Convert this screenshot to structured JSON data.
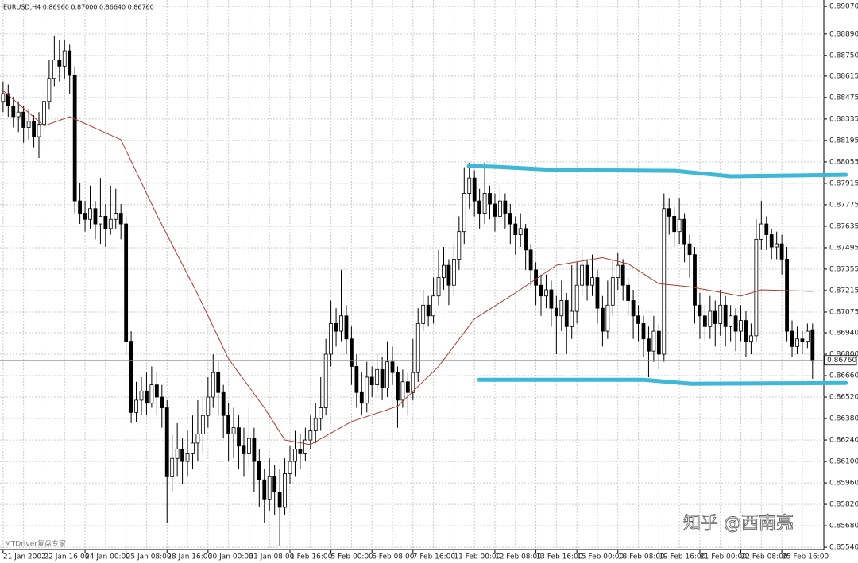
{
  "chart_data": {
    "type": "candlestick",
    "header": "EURUSD,H4 0.86960 0.87000 0.86640 0.86760",
    "categories": [
      "21 Jan 2002",
      null,
      null,
      null,
      null,
      null,
      null,
      null,
      "22 Jan 16:00",
      null,
      null,
      null,
      null,
      null,
      null,
      null,
      "24 Jan 00:00",
      null,
      null,
      null,
      null,
      null,
      null,
      null,
      "25 Jan 08:00",
      null,
      null,
      null,
      null,
      null,
      null,
      null,
      "28 Jan 16:00",
      null,
      null,
      null,
      null,
      null,
      null,
      null,
      "30 Jan 00:00",
      null,
      null,
      null,
      null,
      null,
      null,
      null,
      "31 Jan 08:00",
      null,
      null,
      null,
      null,
      null,
      null,
      null,
      "1 Feb 16:00",
      null,
      null,
      null,
      null,
      null,
      null,
      null,
      "5 Feb 00:00",
      null,
      null,
      null,
      null,
      null,
      null,
      null,
      "6 Feb 08:00",
      null,
      null,
      null,
      null,
      null,
      null,
      null,
      "7 Feb 16:00",
      null,
      null,
      null,
      null,
      null,
      null,
      null,
      "11 Feb 00:00",
      null,
      null,
      null,
      null,
      null,
      null,
      null,
      "12 Feb 08:00",
      null,
      null,
      null,
      null,
      null,
      null,
      null,
      "13 Feb 16:00",
      null,
      null,
      null,
      null,
      null,
      null,
      null,
      "15 Feb 00:00",
      null,
      null,
      null,
      null,
      null,
      null,
      null,
      "18 Feb 08:00",
      null,
      null,
      null,
      null,
      null,
      null,
      null,
      "19 Feb 16:00",
      null,
      null,
      null,
      null,
      null,
      null,
      null,
      "21 Feb 00:00",
      null,
      null,
      null,
      null,
      null,
      null,
      null,
      "22 Feb 08:00",
      null,
      null,
      null,
      null,
      null,
      null,
      null,
      "25 Feb 16:00",
      null,
      null,
      null,
      null,
      null,
      null
    ],
    "open": [
      0.8845,
      0.885,
      0.8842,
      0.8835,
      0.8838,
      0.8828,
      0.8832,
      0.8822,
      0.883,
      0.8845,
      0.886,
      0.8872,
      0.8868,
      0.8878,
      0.8862,
      0.878,
      0.8772,
      0.8768,
      0.8775,
      0.8765,
      0.877,
      0.8762,
      0.8768,
      0.8772,
      0.8765,
      0.8688,
      0.8642,
      0.865,
      0.8656,
      0.8648,
      0.866,
      0.8652,
      0.8645,
      0.86,
      0.8612,
      0.8618,
      0.861,
      0.8615,
      0.8622,
      0.8628,
      0.864,
      0.8652,
      0.8668,
      0.8655,
      0.864,
      0.8628,
      0.8632,
      0.862,
      0.8615,
      0.8625,
      0.861,
      0.8598,
      0.8585,
      0.86,
      0.859,
      0.858,
      0.8602,
      0.861,
      0.8618,
      0.8615,
      0.8624,
      0.863,
      0.8638,
      0.8645,
      0.868,
      0.87,
      0.8695,
      0.8705,
      0.869,
      0.8672,
      0.8655,
      0.8648,
      0.8665,
      0.866,
      0.867,
      0.8658,
      0.8675,
      0.8668,
      0.865,
      0.8662,
      0.8655,
      0.8668,
      0.87,
      0.8712,
      0.8705,
      0.8718,
      0.873,
      0.8738,
      0.8725,
      0.8742,
      0.876,
      0.8785,
      0.8795,
      0.878,
      0.8772,
      0.8785,
      0.8778,
      0.877,
      0.878,
      0.8772,
      0.8765,
      0.8758,
      0.8762,
      0.8748,
      0.8735,
      0.8725,
      0.8718,
      0.8722,
      0.871,
      0.8705,
      0.8715,
      0.8698,
      0.8708,
      0.8725,
      0.8738,
      0.8725,
      0.873,
      0.871,
      0.8695,
      0.8712,
      0.873,
      0.8738,
      0.8725,
      0.8715,
      0.8705,
      0.87,
      0.869,
      0.8682,
      0.8695,
      0.868,
      0.8775,
      0.877,
      0.876,
      0.8768,
      0.8752,
      0.8745,
      0.8712,
      0.8705,
      0.8698,
      0.8708,
      0.87,
      0.8712,
      0.8698,
      0.8705,
      0.8695,
      0.8702,
      0.8688,
      0.8692,
      0.8755,
      0.8765,
      0.8758,
      0.875,
      0.8752,
      0.8742,
      0.8695,
      0.8685,
      0.869,
      0.8688,
      0.8696
    ],
    "high": [
      0.8858,
      0.8856,
      0.8848,
      0.8845,
      0.8842,
      0.884,
      0.8836,
      0.8838,
      0.8852,
      0.8872,
      0.8888,
      0.8885,
      0.8885,
      0.8882,
      0.8868,
      0.8792,
      0.878,
      0.879,
      0.878,
      0.8795,
      0.8778,
      0.879,
      0.8788,
      0.8778,
      0.877,
      0.8695,
      0.8662,
      0.8665,
      0.8668,
      0.8672,
      0.8668,
      0.866,
      0.865,
      0.8628,
      0.8635,
      0.8625,
      0.863,
      0.864,
      0.865,
      0.8652,
      0.8665,
      0.868,
      0.8675,
      0.866,
      0.8648,
      0.8645,
      0.864,
      0.8632,
      0.8645,
      0.8632,
      0.8618,
      0.8605,
      0.8612,
      0.8608,
      0.8605,
      0.8612,
      0.862,
      0.863,
      0.8628,
      0.8632,
      0.864,
      0.8648,
      0.8665,
      0.869,
      0.8715,
      0.871,
      0.8735,
      0.8712,
      0.8698,
      0.868,
      0.8668,
      0.8675,
      0.8672,
      0.868,
      0.8678,
      0.8688,
      0.8685,
      0.8672,
      0.867,
      0.8668,
      0.869,
      0.871,
      0.8722,
      0.8718,
      0.873,
      0.8748,
      0.875,
      0.8742,
      0.8752,
      0.877,
      0.8802,
      0.8805,
      0.88,
      0.8788,
      0.8805,
      0.879,
      0.8785,
      0.879,
      0.8785,
      0.8778,
      0.877,
      0.8772,
      0.8765,
      0.8752,
      0.874,
      0.8732,
      0.8732,
      0.8728,
      0.8718,
      0.8728,
      0.872,
      0.8738,
      0.874,
      0.8748,
      0.8742,
      0.8745,
      0.8735,
      0.8718,
      0.8728,
      0.8742,
      0.8746,
      0.8742,
      0.873,
      0.8722,
      0.8712,
      0.8705,
      0.8698,
      0.8705,
      0.87,
      0.8785,
      0.8782,
      0.8776,
      0.8782,
      0.8772,
      0.8758,
      0.875,
      0.872,
      0.8712,
      0.8718,
      0.8715,
      0.8722,
      0.8718,
      0.8712,
      0.871,
      0.8712,
      0.8708,
      0.87,
      0.8768,
      0.878,
      0.877,
      0.8762,
      0.876,
      0.8758,
      0.875,
      0.8702,
      0.8698,
      0.8695,
      0.87,
      0.87
    ],
    "low": [
      0.8838,
      0.8835,
      0.8828,
      0.8825,
      0.8818,
      0.882,
      0.8815,
      0.8808,
      0.8825,
      0.884,
      0.8855,
      0.8858,
      0.886,
      0.885,
      0.8772,
      0.8765,
      0.876,
      0.8762,
      0.8755,
      0.8752,
      0.875,
      0.8758,
      0.8762,
      0.8755,
      0.868,
      0.8635,
      0.8636,
      0.864,
      0.864,
      0.8645,
      0.864,
      0.8632,
      0.857,
      0.859,
      0.86,
      0.8595,
      0.86,
      0.8605,
      0.861,
      0.8615,
      0.8632,
      0.8645,
      0.864,
      0.8625,
      0.861,
      0.8612,
      0.8605,
      0.86,
      0.8605,
      0.859,
      0.858,
      0.857,
      0.8578,
      0.8575,
      0.8555,
      0.8575,
      0.8595,
      0.86,
      0.8605,
      0.861,
      0.8618,
      0.8622,
      0.863,
      0.864,
      0.8672,
      0.8685,
      0.8688,
      0.868,
      0.866,
      0.8645,
      0.864,
      0.8642,
      0.8652,
      0.8655,
      0.865,
      0.8652,
      0.866,
      0.8632,
      0.8645,
      0.864,
      0.865,
      0.8662,
      0.8695,
      0.8698,
      0.87,
      0.8712,
      0.8722,
      0.8712,
      0.8718,
      0.8735,
      0.8752,
      0.8775,
      0.877,
      0.8762,
      0.8765,
      0.8768,
      0.876,
      0.8765,
      0.8762,
      0.8752,
      0.8745,
      0.875,
      0.8735,
      0.8725,
      0.8712,
      0.8705,
      0.871,
      0.8698,
      0.868,
      0.8695,
      0.868,
      0.869,
      0.87,
      0.8718,
      0.8715,
      0.8718,
      0.87,
      0.8685,
      0.869,
      0.8705,
      0.8722,
      0.8715,
      0.8705,
      0.869,
      0.8688,
      0.8678,
      0.8665,
      0.8675,
      0.867,
      0.8675,
      0.8758,
      0.875,
      0.8752,
      0.874,
      0.873,
      0.87,
      0.869,
      0.8688,
      0.869,
      0.8685,
      0.8692,
      0.8685,
      0.8688,
      0.8682,
      0.8688,
      0.8678,
      0.868,
      0.8688,
      0.8748,
      0.8748,
      0.8742,
      0.8742,
      0.8732,
      0.8688,
      0.8678,
      0.868,
      0.868,
      0.8684,
      0.8664
    ],
    "close": [
      0.885,
      0.8842,
      0.8835,
      0.8838,
      0.8828,
      0.8832,
      0.8822,
      0.883,
      0.8845,
      0.886,
      0.8872,
      0.8868,
      0.8878,
      0.8862,
      0.878,
      0.8772,
      0.8768,
      0.8775,
      0.8765,
      0.877,
      0.8762,
      0.8768,
      0.8772,
      0.8765,
      0.8688,
      0.8642,
      0.865,
      0.8656,
      0.8648,
      0.866,
      0.8652,
      0.8645,
      0.86,
      0.8612,
      0.8618,
      0.861,
      0.8615,
      0.8622,
      0.8628,
      0.864,
      0.8652,
      0.8668,
      0.8655,
      0.864,
      0.8628,
      0.8632,
      0.862,
      0.8615,
      0.8625,
      0.861,
      0.8598,
      0.8585,
      0.86,
      0.859,
      0.858,
      0.8602,
      0.861,
      0.8618,
      0.8615,
      0.8624,
      0.863,
      0.8638,
      0.8645,
      0.868,
      0.87,
      0.8695,
      0.8705,
      0.869,
      0.8672,
      0.8655,
      0.8648,
      0.8665,
      0.866,
      0.867,
      0.8658,
      0.8675,
      0.8668,
      0.865,
      0.8662,
      0.8655,
      0.8668,
      0.87,
      0.8712,
      0.8705,
      0.8718,
      0.873,
      0.8738,
      0.8725,
      0.8742,
      0.876,
      0.8785,
      0.8795,
      0.878,
      0.8772,
      0.8785,
      0.8778,
      0.877,
      0.878,
      0.8772,
      0.8765,
      0.8758,
      0.8762,
      0.8748,
      0.8735,
      0.8725,
      0.8718,
      0.8722,
      0.871,
      0.8705,
      0.8715,
      0.8698,
      0.8708,
      0.8725,
      0.8738,
      0.8725,
      0.873,
      0.871,
      0.8695,
      0.8712,
      0.873,
      0.8738,
      0.8725,
      0.8715,
      0.8705,
      0.87,
      0.869,
      0.8682,
      0.8695,
      0.868,
      0.8775,
      0.877,
      0.876,
      0.8768,
      0.8752,
      0.8745,
      0.8712,
      0.8705,
      0.8698,
      0.8708,
      0.87,
      0.8712,
      0.8698,
      0.8705,
      0.8695,
      0.8702,
      0.8688,
      0.8692,
      0.8755,
      0.8765,
      0.8758,
      0.875,
      0.8752,
      0.8742,
      0.8695,
      0.8685,
      0.869,
      0.8688,
      0.8695,
      0.8676
    ],
    "up_color": "#ffffff",
    "down_color": "#000000",
    "moving_average": {
      "color": "#b03a2e",
      "x": [
        0,
        8,
        13,
        23,
        30,
        38,
        44,
        51,
        55,
        60,
        68,
        77,
        85,
        92,
        100,
        108,
        117,
        122,
        128,
        134,
        144,
        148,
        158
      ],
      "values": [
        0.8852,
        0.8829,
        0.8835,
        0.882,
        0.8771,
        0.8719,
        0.8677,
        0.8645,
        0.8624,
        0.8621,
        0.8636,
        0.8646,
        0.8672,
        0.8703,
        0.872,
        0.8738,
        0.8743,
        0.8739,
        0.8726,
        0.8724,
        0.8718,
        0.8722,
        0.8721
      ]
    },
    "trend_lines": [
      {
        "color": "#3fb7d6",
        "x": [
          90.9,
          96.3,
          107.9,
          131.2,
          142,
          164.5
        ],
        "values": [
          0.88028,
          0.88023,
          0.88002,
          0.87997,
          0.87961,
          0.87971
        ]
      },
      {
        "color": "#3fb7d6",
        "x": [
          92.9,
          125,
          134.3,
          164.5
        ],
        "values": [
          0.86633,
          0.86633,
          0.86607,
          0.86612
        ]
      }
    ],
    "last_price": {
      "value": 0.8676,
      "label": "0.86760"
    },
    "xlim": [
      -0.6,
      160.2
    ],
    "ylim": [
      0.85525,
      0.89112
    ],
    "yticks": [
      {
        "value": 0.8907,
        "label": "0.89070"
      },
      {
        "value": 0.8889,
        "label": "0.88890"
      },
      {
        "value": 0.8875,
        "label": "0.88750"
      },
      {
        "value": 0.88615,
        "label": "0.88615"
      },
      {
        "value": 0.88475,
        "label": "0.88475"
      },
      {
        "value": 0.88335,
        "label": "0.88335"
      },
      {
        "value": 0.88195,
        "label": "0.88195"
      },
      {
        "value": 0.88055,
        "label": "0.88055"
      },
      {
        "value": 0.87915,
        "label": "0.87915"
      },
      {
        "value": 0.87775,
        "label": "0.87775"
      },
      {
        "value": 0.87635,
        "label": "0.87635"
      },
      {
        "value": 0.87495,
        "label": "0.87495"
      },
      {
        "value": 0.87355,
        "label": "0.87355"
      },
      {
        "value": 0.87215,
        "label": "0.87215"
      },
      {
        "value": 0.87075,
        "label": "0.87075"
      },
      {
        "value": 0.8694,
        "label": "0.86940"
      },
      {
        "value": 0.868,
        "label": "0.86800"
      },
      {
        "value": 0.8666,
        "label": "0.86660"
      },
      {
        "value": 0.8652,
        "label": "0.86520"
      },
      {
        "value": 0.8638,
        "label": "0.86380"
      },
      {
        "value": 0.8624,
        "label": "0.86240"
      },
      {
        "value": 0.861,
        "label": "0.86100"
      },
      {
        "value": 0.8596,
        "label": "0.85960"
      },
      {
        "value": 0.8582,
        "label": "0.85820"
      },
      {
        "value": 0.8568,
        "label": "0.85680"
      },
      {
        "value": 0.8554,
        "label": "0.85540"
      }
    ],
    "grid": true,
    "watermark": "MTDriver复盘专家",
    "credit": "知乎 @西南亮"
  }
}
